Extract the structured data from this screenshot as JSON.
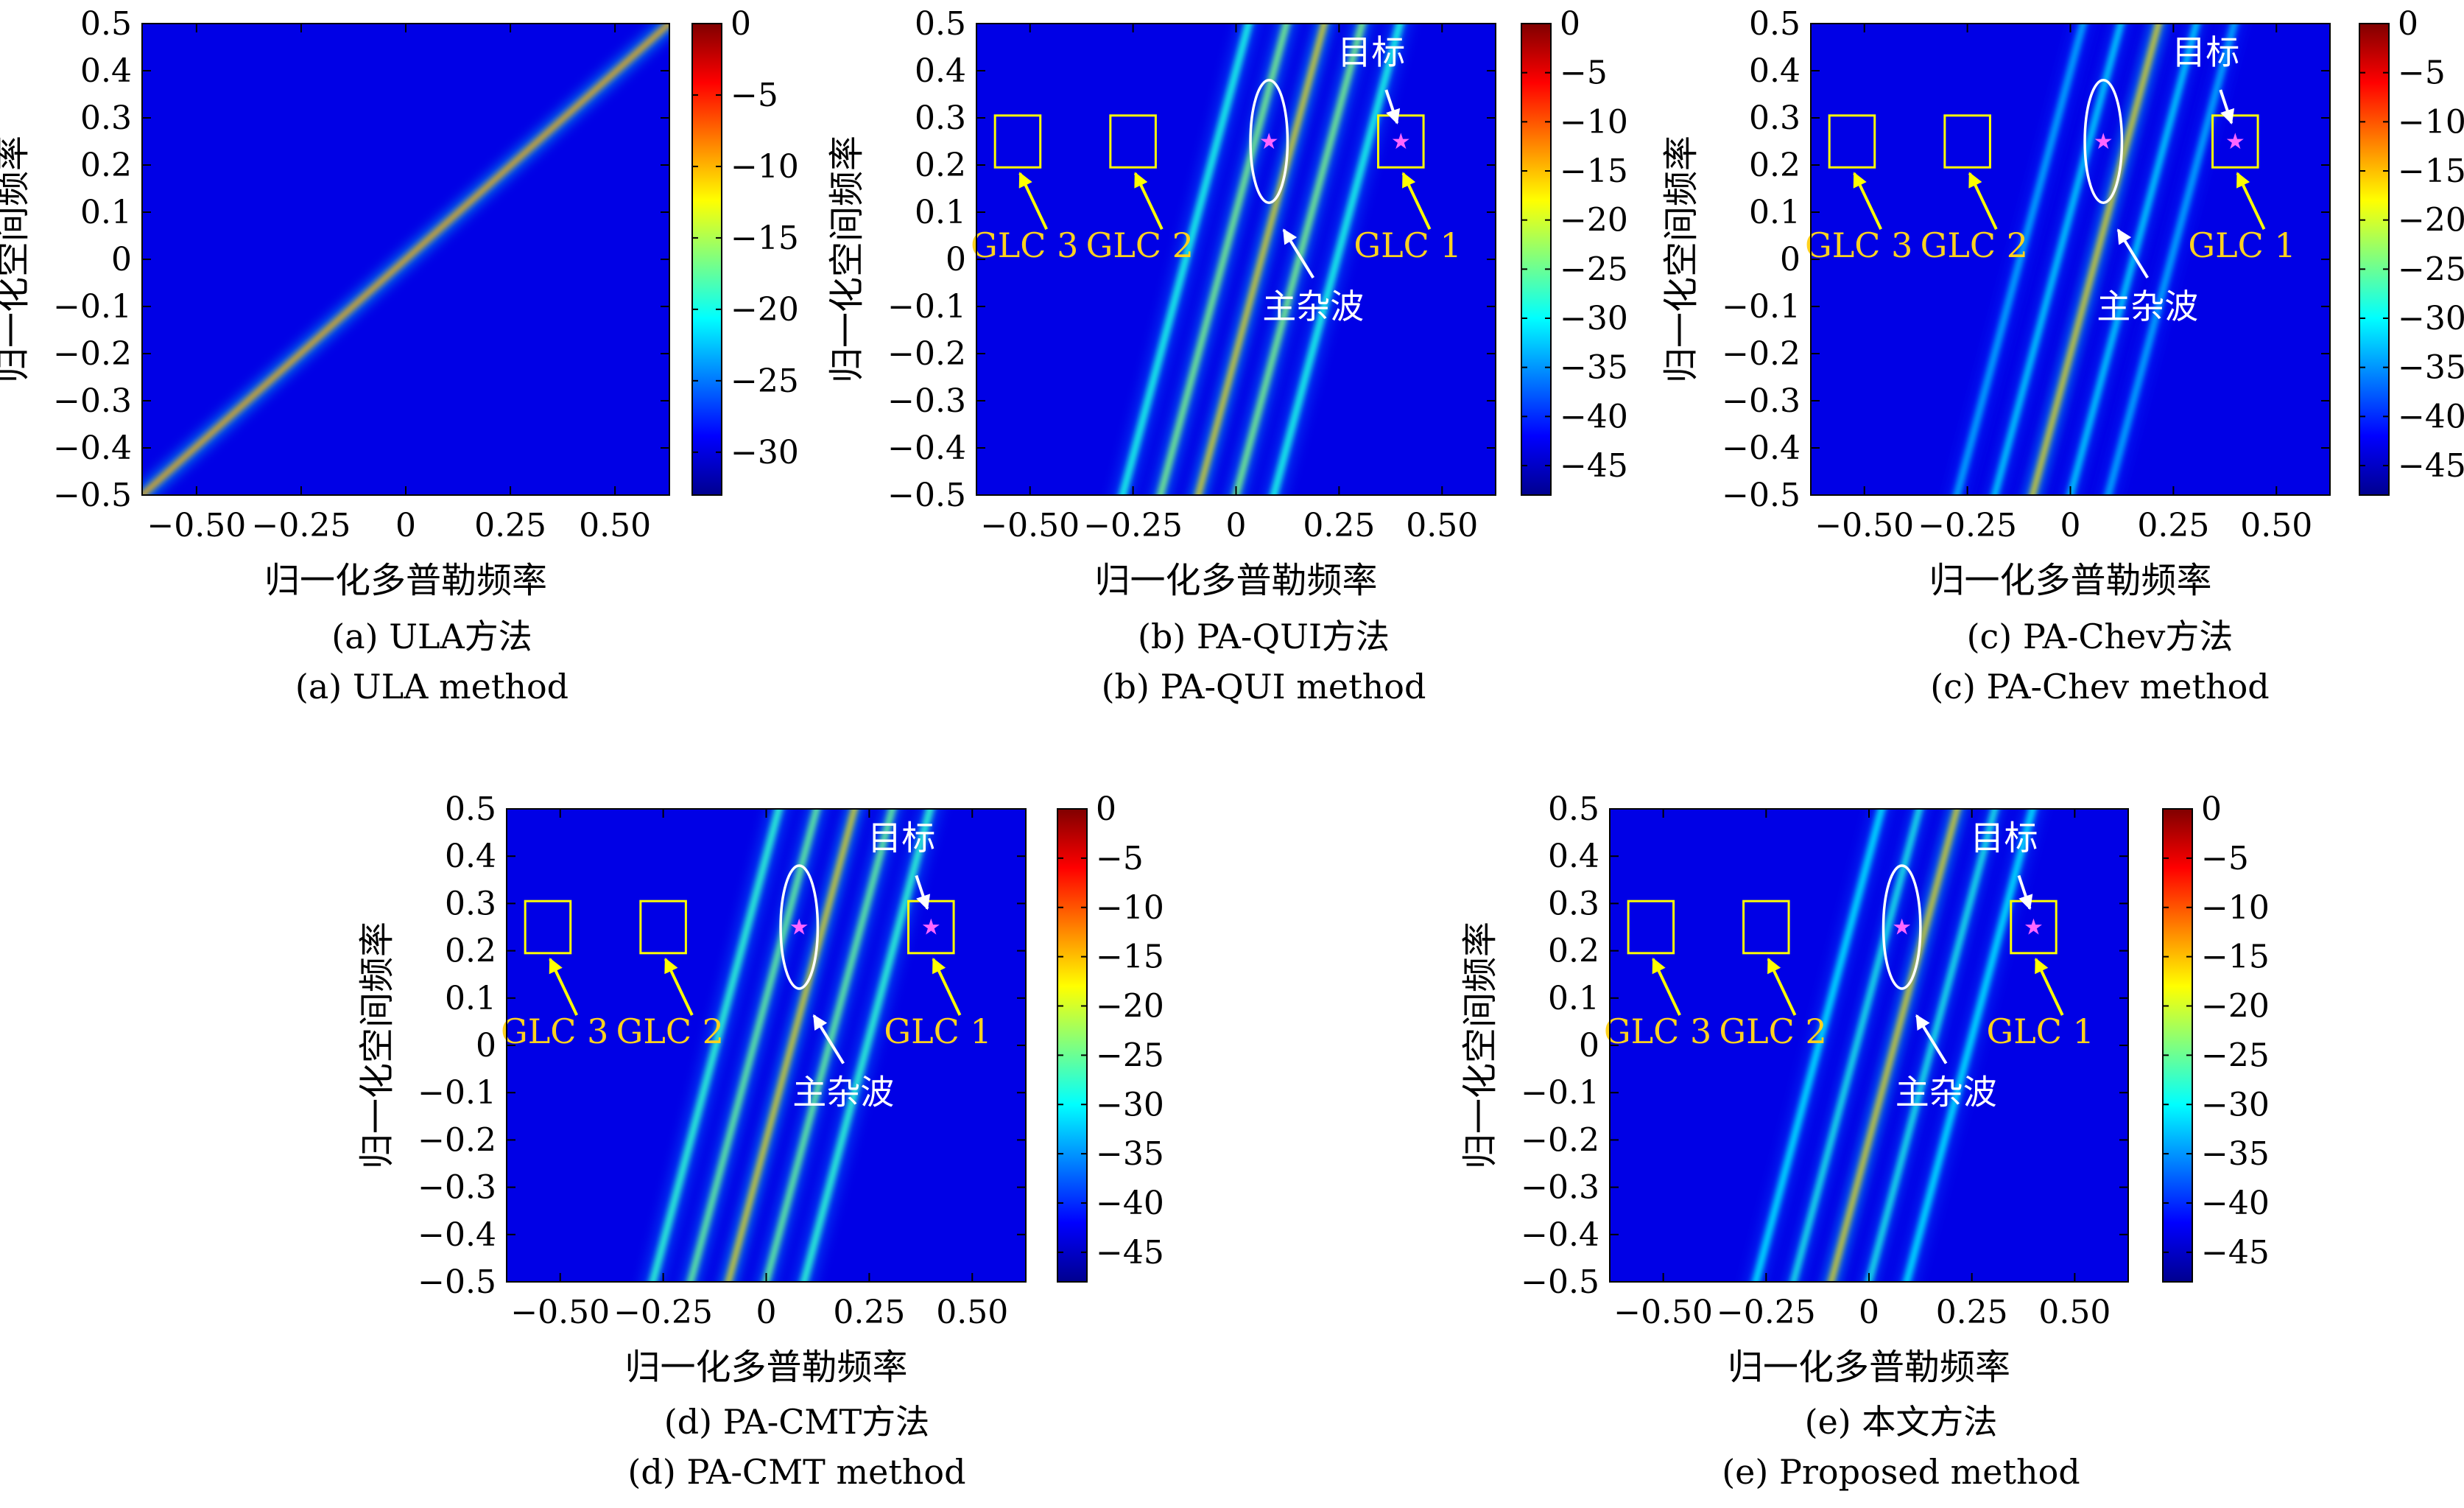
{
  "chart_data": [
    {
      "id": "a",
      "type": "heatmap",
      "caption_cn": "(a) ULA方法",
      "caption_en": "(a) ULA method",
      "xlabel": "归一化多普勒频率",
      "ylabel": "归一化空间频率",
      "xlim": [
        -0.63,
        0.63
      ],
      "ylim": [
        -0.5,
        0.5
      ],
      "xticks": [
        -0.5,
        -0.25,
        0,
        0.25,
        0.5
      ],
      "xtick_labels": [
        "−0.50",
        "−0.25",
        "0",
        "0.25",
        "0.50"
      ],
      "yticks": [
        0.5,
        0.4,
        0.3,
        0.2,
        0.1,
        0,
        -0.1,
        -0.2,
        -0.3,
        -0.4,
        -0.5
      ],
      "ytick_labels": [
        "0.5",
        "0.4",
        "0.3",
        "0.2",
        "0.1",
        "0",
        "−0.1",
        "−0.2",
        "−0.3",
        "−0.4",
        "−0.5"
      ],
      "colorbar": {
        "range": [
          -33,
          0
        ],
        "ticks": [
          0,
          -5,
          -10,
          -15,
          -20,
          -25,
          -30
        ],
        "tick_labels": [
          "0",
          "−5",
          "−10",
          "−15",
          "−20",
          "−25",
          "−30"
        ]
      },
      "ridges": [
        {
          "slope": 0.794,
          "intercept": 0,
          "level": 0.7,
          "width": 0.012
        }
      ],
      "annotations": []
    },
    {
      "id": "b",
      "type": "heatmap",
      "caption_cn": "(b) PA-QUI方法",
      "caption_en": "(b) PA-QUI method",
      "xlabel": "归一化多普勒频率",
      "ylabel": "归一化空间频率",
      "xlim": [
        -0.63,
        0.63
      ],
      "ylim": [
        -0.5,
        0.5
      ],
      "xticks": [
        -0.5,
        -0.25,
        0,
        0.25,
        0.5
      ],
      "xtick_labels": [
        "−0.50",
        "−0.25",
        "0",
        "0.25",
        "0.50"
      ],
      "yticks": [
        0.5,
        0.4,
        0.3,
        0.2,
        0.1,
        0,
        -0.1,
        -0.2,
        -0.3,
        -0.4,
        -0.5
      ],
      "ytick_labels": [
        "0.5",
        "0.4",
        "0.3",
        "0.2",
        "0.1",
        "0",
        "−0.1",
        "−0.2",
        "−0.3",
        "−0.4",
        "−0.5"
      ],
      "colorbar": {
        "range": [
          -48,
          0
        ],
        "ticks": [
          0,
          -5,
          -10,
          -15,
          -20,
          -25,
          -30,
          -35,
          -40,
          -45
        ],
        "tick_labels": [
          "0",
          "−5",
          "−10",
          "−15",
          "−20",
          "−25",
          "−30",
          "−35",
          "−40",
          "−45"
        ]
      },
      "ridges": [
        {
          "slope": 3.27,
          "intercept": -0.2,
          "level": 0.65,
          "width": 0.012
        },
        {
          "slope": 3.27,
          "intercept": -0.5,
          "level": 0.5,
          "width": 0.015
        },
        {
          "slope": 3.27,
          "intercept": -0.8,
          "level": 0.4,
          "width": 0.017
        },
        {
          "slope": 3.27,
          "intercept": 0.1,
          "level": 0.5,
          "width": 0.015
        },
        {
          "slope": 3.27,
          "intercept": 0.4,
          "level": 0.4,
          "width": 0.017
        }
      ],
      "annotations": {
        "target": {
          "x": 0.4,
          "y": 0.25,
          "label": "目标"
        },
        "main_clutter_label": "主杂波",
        "main_clutter_center": [
          0.08,
          0.25
        ],
        "boxes": [
          {
            "x": -0.53,
            "y": 0.25,
            "label": "GLC 3"
          },
          {
            "x": -0.25,
            "y": 0.25,
            "label": "GLC 2"
          },
          {
            "x": 0.4,
            "y": 0.25,
            "label": "GLC 1"
          }
        ]
      }
    },
    {
      "id": "c",
      "type": "heatmap",
      "caption_cn": "(c) PA-Chev方法",
      "caption_en": "(c) PA-Chev method",
      "xlabel": "归一化多普勒频率",
      "ylabel": "归一化空间频率",
      "xlim": [
        -0.63,
        0.63
      ],
      "ylim": [
        -0.5,
        0.5
      ],
      "xticks": [
        -0.5,
        -0.25,
        0,
        0.25,
        0.5
      ],
      "xtick_labels": [
        "−0.50",
        "−0.25",
        "0",
        "0.25",
        "0.50"
      ],
      "yticks": [
        0.5,
        0.4,
        0.3,
        0.2,
        0.1,
        0,
        -0.1,
        -0.2,
        -0.3,
        -0.4,
        -0.5
      ],
      "ytick_labels": [
        "0.5",
        "0.4",
        "0.3",
        "0.2",
        "0.1",
        "0",
        "−0.1",
        "−0.2",
        "−0.3",
        "−0.4",
        "−0.5"
      ],
      "colorbar": {
        "range": [
          -48,
          0
        ],
        "ticks": [
          0,
          -5,
          -10,
          -15,
          -20,
          -25,
          -30,
          -35,
          -40,
          -45
        ],
        "tick_labels": [
          "0",
          "−5",
          "−10",
          "−15",
          "−20",
          "−25",
          "−30",
          "−35",
          "−40",
          "−45"
        ]
      },
      "ridges": [
        {
          "slope": 3.27,
          "intercept": -0.2,
          "level": 0.65,
          "width": 0.012
        },
        {
          "slope": 3.27,
          "intercept": -0.5,
          "level": 0.35,
          "width": 0.014
        },
        {
          "slope": 3.27,
          "intercept": -0.8,
          "level": 0.3,
          "width": 0.016
        },
        {
          "slope": 3.27,
          "intercept": 0.1,
          "level": 0.35,
          "width": 0.014
        },
        {
          "slope": 3.27,
          "intercept": 0.4,
          "level": 0.3,
          "width": 0.016
        }
      ],
      "annotations": {
        "target": {
          "x": 0.4,
          "y": 0.25,
          "label": "目标"
        },
        "main_clutter_label": "主杂波",
        "main_clutter_center": [
          0.08,
          0.25
        ],
        "boxes": [
          {
            "x": -0.53,
            "y": 0.25,
            "label": "GLC 3"
          },
          {
            "x": -0.25,
            "y": 0.25,
            "label": "GLC 2"
          },
          {
            "x": 0.4,
            "y": 0.25,
            "label": "GLC 1"
          }
        ]
      }
    },
    {
      "id": "d",
      "type": "heatmap",
      "caption_cn": "(d) PA-CMT方法",
      "caption_en": "(d) PA-CMT method",
      "xlabel": "归一化多普勒频率",
      "ylabel": "归一化空间频率",
      "xlim": [
        -0.63,
        0.63
      ],
      "ylim": [
        -0.5,
        0.5
      ],
      "xticks": [
        -0.5,
        -0.25,
        0,
        0.25,
        0.5
      ],
      "xtick_labels": [
        "−0.50",
        "−0.25",
        "0",
        "0.25",
        "0.50"
      ],
      "yticks": [
        0.5,
        0.4,
        0.3,
        0.2,
        0.1,
        0,
        -0.1,
        -0.2,
        -0.3,
        -0.4,
        -0.5
      ],
      "ytick_labels": [
        "0.5",
        "0.4",
        "0.3",
        "0.2",
        "0.1",
        "0",
        "−0.1",
        "−0.2",
        "−0.3",
        "−0.4",
        "−0.5"
      ],
      "colorbar": {
        "range": [
          -48,
          0
        ],
        "ticks": [
          0,
          -5,
          -10,
          -15,
          -20,
          -25,
          -30,
          -35,
          -40,
          -45
        ],
        "tick_labels": [
          "0",
          "−5",
          "−10",
          "−15",
          "−20",
          "−25",
          "−30",
          "−35",
          "−40",
          "−45"
        ]
      },
      "ridges": [
        {
          "slope": 3.27,
          "intercept": -0.2,
          "level": 0.65,
          "width": 0.012
        },
        {
          "slope": 3.27,
          "intercept": -0.5,
          "level": 0.48,
          "width": 0.015
        },
        {
          "slope": 3.27,
          "intercept": -0.8,
          "level": 0.42,
          "width": 0.017
        },
        {
          "slope": 3.27,
          "intercept": 0.1,
          "level": 0.48,
          "width": 0.015
        },
        {
          "slope": 3.27,
          "intercept": 0.4,
          "level": 0.42,
          "width": 0.017
        }
      ],
      "annotations": {
        "target": {
          "x": 0.4,
          "y": 0.25,
          "label": "目标"
        },
        "main_clutter_label": "主杂波",
        "main_clutter_center": [
          0.08,
          0.25
        ],
        "boxes": [
          {
            "x": -0.53,
            "y": 0.25,
            "label": "GLC 3"
          },
          {
            "x": -0.25,
            "y": 0.25,
            "label": "GLC 2"
          },
          {
            "x": 0.4,
            "y": 0.25,
            "label": "GLC 1"
          }
        ]
      }
    },
    {
      "id": "e",
      "type": "heatmap",
      "caption_cn": "(e) 本文方法",
      "caption_en": "(e) Proposed method",
      "xlabel": "归一化多普勒频率",
      "ylabel": "归一化空间频率",
      "xlim": [
        -0.63,
        0.63
      ],
      "ylim": [
        -0.5,
        0.5
      ],
      "xticks": [
        -0.5,
        -0.25,
        0,
        0.25,
        0.5
      ],
      "xtick_labels": [
        "−0.50",
        "−0.25",
        "0",
        "0.25",
        "0.50"
      ],
      "yticks": [
        0.5,
        0.4,
        0.3,
        0.2,
        0.1,
        0,
        -0.1,
        -0.2,
        -0.3,
        -0.4,
        -0.5
      ],
      "ytick_labels": [
        "0.5",
        "0.4",
        "0.3",
        "0.2",
        "0.1",
        "0",
        "−0.1",
        "−0.2",
        "−0.3",
        "−0.4",
        "−0.5"
      ],
      "colorbar": {
        "range": [
          -48,
          0
        ],
        "ticks": [
          0,
          -5,
          -10,
          -15,
          -20,
          -25,
          -30,
          -35,
          -40,
          -45
        ],
        "tick_labels": [
          "0",
          "−5",
          "−10",
          "−15",
          "−20",
          "−25",
          "−30",
          "−35",
          "−40",
          "−45"
        ]
      },
      "ridges": [
        {
          "slope": 3.27,
          "intercept": -0.2,
          "level": 0.65,
          "width": 0.012
        },
        {
          "slope": 3.27,
          "intercept": -0.5,
          "level": 0.4,
          "width": 0.014
        },
        {
          "slope": 3.27,
          "intercept": -0.8,
          "level": 0.36,
          "width": 0.016
        },
        {
          "slope": 3.27,
          "intercept": 0.1,
          "level": 0.4,
          "width": 0.014
        },
        {
          "slope": 3.27,
          "intercept": 0.4,
          "level": 0.36,
          "width": 0.016
        }
      ],
      "annotations": {
        "target": {
          "x": 0.4,
          "y": 0.25,
          "label": "目标"
        },
        "main_clutter_label": "主杂波",
        "main_clutter_center": [
          0.08,
          0.25
        ],
        "boxes": [
          {
            "x": -0.53,
            "y": 0.25,
            "label": "GLC 3"
          },
          {
            "x": -0.25,
            "y": 0.25,
            "label": "GLC 2"
          },
          {
            "x": 0.4,
            "y": 0.25,
            "label": "GLC 1"
          }
        ]
      }
    }
  ],
  "colors": {
    "box": "#ffff00",
    "box_label": "#ffd21e",
    "arrow": "#ffff00",
    "clutter_marker": "#ffffff",
    "target_star": "#ff66ff",
    "axis": "#000000"
  }
}
